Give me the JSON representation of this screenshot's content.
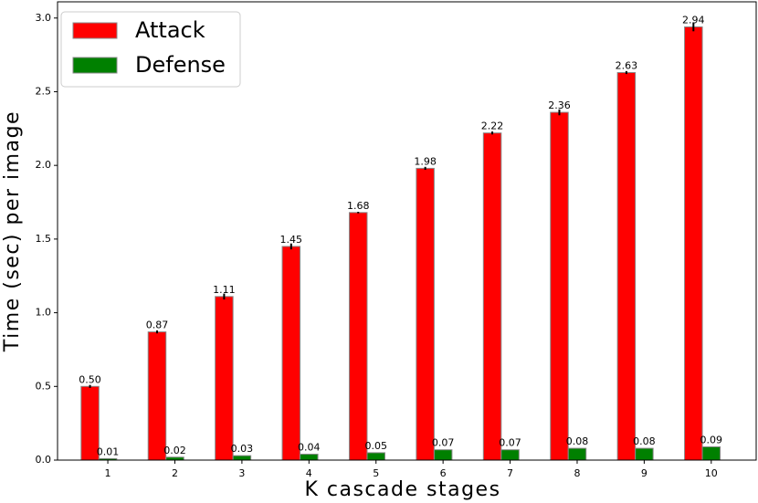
{
  "chart_data": {
    "type": "bar",
    "xlabel": "K cascade stages",
    "ylabel": "Time (sec) per image",
    "categories": [
      "1",
      "2",
      "3",
      "4",
      "5",
      "6",
      "7",
      "8",
      "9",
      "10"
    ],
    "series": [
      {
        "name": "Attack",
        "color": "#ff0000",
        "values": [
          0.5,
          0.87,
          1.11,
          1.45,
          1.68,
          1.98,
          2.22,
          2.36,
          2.63,
          2.94
        ],
        "value_labels": [
          "0.50",
          "0.87",
          "1.11",
          "1.45",
          "1.68",
          "1.98",
          "2.22",
          "2.36",
          "2.63",
          "2.94"
        ],
        "errors": [
          0.01,
          0.01,
          0.02,
          0.02,
          0.005,
          0.01,
          0.01,
          0.02,
          0.01,
          0.03
        ]
      },
      {
        "name": "Defense",
        "color": "#008000",
        "values": [
          0.01,
          0.02,
          0.03,
          0.04,
          0.05,
          0.07,
          0.07,
          0.08,
          0.08,
          0.09
        ],
        "value_labels": [
          "0.01",
          "0.02",
          "0.03",
          "0.04",
          "0.05",
          "0.07",
          "0.07",
          "0.08",
          "0.08",
          "0.09"
        ]
      }
    ],
    "ylim": [
      0,
      3.11
    ],
    "yticks": [
      {
        "value": 0,
        "label": "0.0"
      },
      0.5,
      {
        "value": 1,
        "label": "1.0"
      },
      1.5,
      {
        "value": 2,
        "label": "2.0"
      },
      2.5,
      {
        "value": 3,
        "label": "3.0"
      }
    ],
    "legend": "upper left"
  }
}
